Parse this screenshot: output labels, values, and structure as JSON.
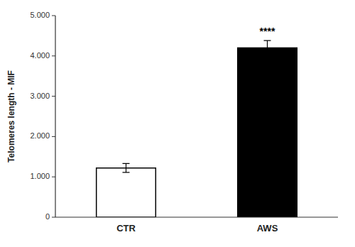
{
  "chart_data": {
    "type": "bar",
    "categories": [
      "CTR",
      "AWS"
    ],
    "values": [
      1220,
      4200
    ],
    "errors": [
      110,
      180
    ],
    "colors": [
      "#ffffff",
      "#000000"
    ],
    "ylabel": "Telomeres length - MIF",
    "ylim": [
      0,
      5000
    ],
    "yticks": [
      0,
      {
        "value": 1000,
        "label": "1.000"
      },
      {
        "value": 2000,
        "label": "2.000"
      },
      {
        "value": 3000,
        "label": "3.000"
      },
      {
        "value": 4000,
        "label": "4.000"
      },
      {
        "value": 5000,
        "label": "5.000"
      }
    ],
    "annotations": [
      {
        "text": "****",
        "category": "AWS"
      }
    ],
    "grid": false
  }
}
